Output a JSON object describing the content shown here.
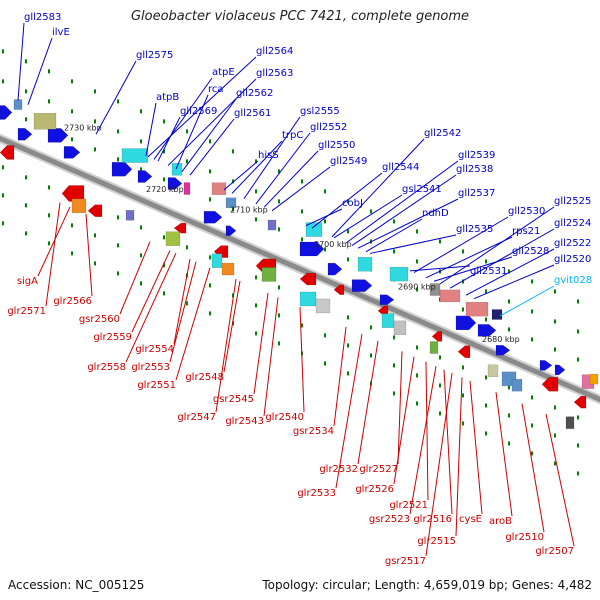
{
  "title": "Gloeobacter violaceus PCC 7421, complete genome",
  "footer": {
    "accession": "Accession: NC_005125",
    "topology": "Topology: circular; Length: 4,659,019 bp; Genes: 4,482"
  },
  "colors": {
    "backbone": "#8a8a8a",
    "forward_gene": "#1010e0",
    "reverse_gene": "#e00000",
    "forward_label": "#0000cc",
    "reverse_label": "#cc0000",
    "rna_label": "#00b4ff",
    "tick": "#008000"
  },
  "scale_labels": [
    "2730 kbp",
    "2720 kbp",
    "2710 kbp",
    "2700 kbp",
    "2690 kbp",
    "2680 kbp"
  ],
  "forward_labels": [
    "gll2583",
    "ilvE",
    "gll2575",
    "gll2564",
    "atpE",
    "gll2563",
    "rca",
    "atpB",
    "gll2562",
    "gll2569",
    "gll2561",
    "gsl2555",
    "trpC",
    "gll2552",
    "hisS",
    "gll2550",
    "gll2549",
    "gll2542",
    "gll2539",
    "gll2544",
    "gll2538",
    "gsl2541",
    "gll2537",
    "cobJ",
    "ndhD",
    "gll2535",
    "gll2530",
    "gll2525",
    "rps21",
    "gll2524",
    "gll2528",
    "gll2522",
    "gll2531",
    "gll2520"
  ],
  "rna_labels": [
    "gvit028"
  ],
  "reverse_labels": [
    "sigA",
    "glr2566",
    "glr2571",
    "gsr2560",
    "glr2559",
    "glr2554",
    "glr2558",
    "glr2553",
    "glr2551",
    "glr2548",
    "gsr2545",
    "glr2547",
    "glr2543",
    "glr2540",
    "gsr2534",
    "glr2532",
    "glr2527",
    "glr2533",
    "glr2526",
    "glr2521",
    "gsr2523",
    "glr2516",
    "cysE",
    "aroB",
    "glr2515",
    "glr2510",
    "gsr2517",
    "glr2507"
  ]
}
